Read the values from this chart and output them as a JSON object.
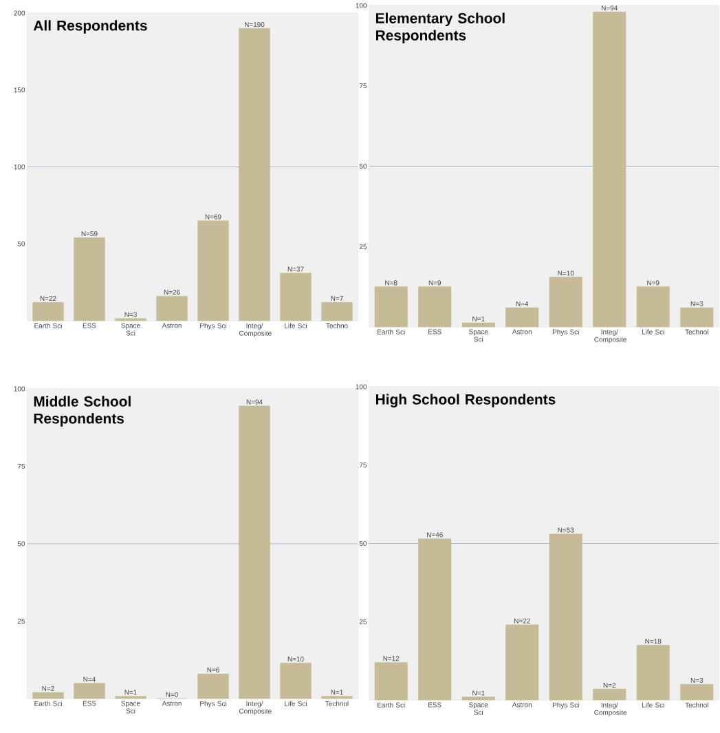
{
  "chart_data": [
    {
      "type": "bar",
      "title": "All Respondents",
      "categories": [
        "Earth Sci",
        "ESS",
        "Space Sci",
        "Astron",
        "Phys Sci",
        "Integ/ Composite",
        "Life Sci",
        "Techno"
      ],
      "values": [
        12,
        54,
        1.5,
        16,
        65,
        190,
        31,
        12
      ],
      "color": "#c6bb96",
      "ylim": [
        0,
        200
      ],
      "yticks": [
        50,
        100,
        150,
        200
      ],
      "ref_lines": [
        {
          "axis": "y",
          "value": 100,
          "color": "#9fb4d4"
        }
      ],
      "annotations": [
        {
          "text": "N=22",
          "x": "Earth Sci",
          "y": 12
        },
        {
          "text": "N=59",
          "x": "ESS",
          "y": 54
        },
        {
          "text": "N=3",
          "x": "Space Sci",
          "y": 1.5
        },
        {
          "text": "N=26",
          "x": "Astron",
          "y": 16
        },
        {
          "text": "N=69",
          "x": "Phys Sci",
          "y": 65
        },
        {
          "text": "N=190",
          "x": "Integ/ Composite",
          "y": 190
        },
        {
          "text": "N=37",
          "x": "Life Sci",
          "y": 31
        },
        {
          "text": "N=7",
          "x": "Techno",
          "y": 12
        }
      ]
    },
    {
      "type": "bar",
      "title": "Elementary School Respondents",
      "categories": [
        "Earth Sci",
        "ESS",
        "Space Sci",
        "Astron",
        "Phys Sci",
        "Integ/ Composite",
        "Life Sci",
        "Technol"
      ],
      "values": [
        12.5,
        12.5,
        1.3,
        6,
        15.5,
        98,
        12.5,
        6
      ],
      "color": "#c6bb96",
      "ylim": [
        0,
        100
      ],
      "yticks": [
        25,
        50,
        75,
        100
      ],
      "ref_lines": [
        {
          "axis": "y",
          "value": 50,
          "color": "#9fb4d4"
        }
      ],
      "annotations": [
        {
          "text": "N=8",
          "x": "Earth Sci",
          "y": 12.5
        },
        {
          "text": "N=9",
          "x": "ESS",
          "y": 12.5
        },
        {
          "text": "N=1",
          "x": "Space Sci",
          "y": 1.3
        },
        {
          "text": "N=4",
          "x": "Astron",
          "y": 6
        },
        {
          "text": "N=10",
          "x": "Phys Sci",
          "y": 15.5
        },
        {
          "text": "N=94",
          "x": "Integ/ Composite",
          "y": 98
        },
        {
          "text": "N=9",
          "x": "Life Sci",
          "y": 12.5
        },
        {
          "text": "N=3",
          "x": "Technol",
          "y": 6
        }
      ]
    },
    {
      "type": "bar",
      "title": "Middle School Respondents",
      "categories": [
        "Earth Sci",
        "ESS",
        "Space Sci",
        "Astron",
        "Phys Sci",
        "Integ/ Composite",
        "Life Sci",
        "Technol"
      ],
      "values": [
        2,
        5,
        0.8,
        0,
        8,
        94.5,
        11.5,
        0.8
      ],
      "color": "#c6bb96",
      "ylim": [
        0,
        100
      ],
      "yticks": [
        25,
        50,
        75,
        100
      ],
      "ref_lines": [
        {
          "axis": "y",
          "value": 50,
          "color": "#9fb4d4"
        }
      ],
      "annotations": [
        {
          "text": "N=2",
          "x": "Earth Sci",
          "y": 2
        },
        {
          "text": "N=4",
          "x": "ESS",
          "y": 5
        },
        {
          "text": "N=1",
          "x": "Space Sci",
          "y": 0.8
        },
        {
          "text": "N=0",
          "x": "Astron",
          "y": 0
        },
        {
          "text": "N=6",
          "x": "Phys Sci",
          "y": 8
        },
        {
          "text": "N=94",
          "x": "Integ/ Composite",
          "y": 94.5
        },
        {
          "text": "N=10",
          "x": "Life Sci",
          "y": 11.5
        },
        {
          "text": "N=1",
          "x": "Technol",
          "y": 0.8
        }
      ]
    },
    {
      "type": "bar",
      "title": "High School Respondents",
      "categories": [
        "Earth Sci",
        "ESS",
        "Space Sci",
        "Astron",
        "Phys Sci",
        "Integ/ Composite",
        "Life Sci",
        "Technol"
      ],
      "values": [
        12,
        51.5,
        1,
        24,
        53,
        3.5,
        17.5,
        5
      ],
      "color": "#c6bb96",
      "ylim": [
        0,
        100
      ],
      "yticks": [
        25,
        50,
        75,
        100
      ],
      "ref_lines": [
        {
          "axis": "y",
          "value": 50,
          "color": "#9fb4d4"
        }
      ],
      "annotations": [
        {
          "text": "N=12",
          "x": "Earth Sci",
          "y": 12
        },
        {
          "text": "N=46",
          "x": "ESS",
          "y": 51.5
        },
        {
          "text": "N=1",
          "x": "Space Sci",
          "y": 1
        },
        {
          "text": "N=22",
          "x": "Astron",
          "y": 24
        },
        {
          "text": "N=53",
          "x": "Phys Sci",
          "y": 53
        },
        {
          "text": "N=2",
          "x": "Integ/ Composite",
          "y": 3.5
        },
        {
          "text": "N=18",
          "x": "Life Sci",
          "y": 17.5
        },
        {
          "text": "N=3",
          "x": "Technol",
          "y": 5
        }
      ]
    }
  ]
}
